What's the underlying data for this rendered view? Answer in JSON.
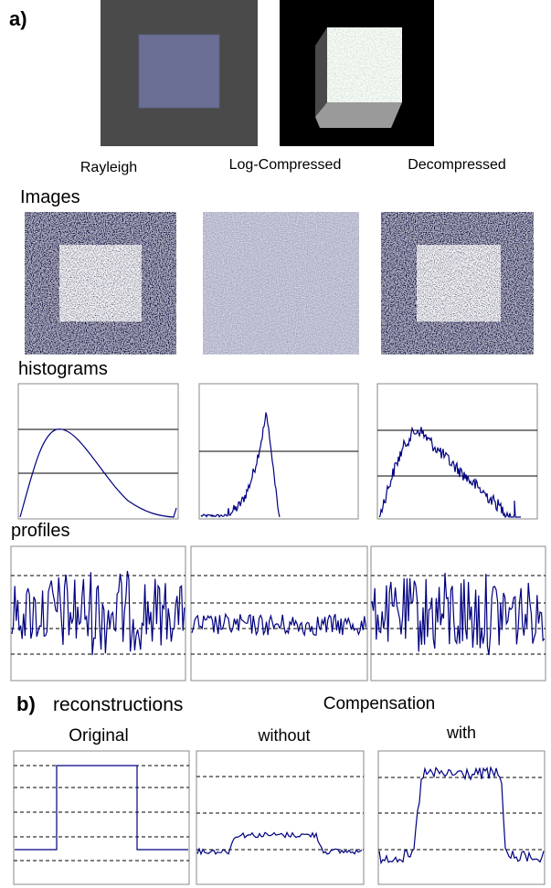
{
  "header": {
    "label": "a)"
  },
  "top_labels": [
    "Rayleigh",
    "Log-Compressed",
    "Decompressed"
  ],
  "sections": {
    "images": "Images",
    "histograms": "histograms",
    "profiles": "profiles"
  },
  "part_b": {
    "label": "b)",
    "title": "reconstructions",
    "group_title": "Compensation",
    "columns": [
      "Original",
      "without",
      "with"
    ]
  }
}
